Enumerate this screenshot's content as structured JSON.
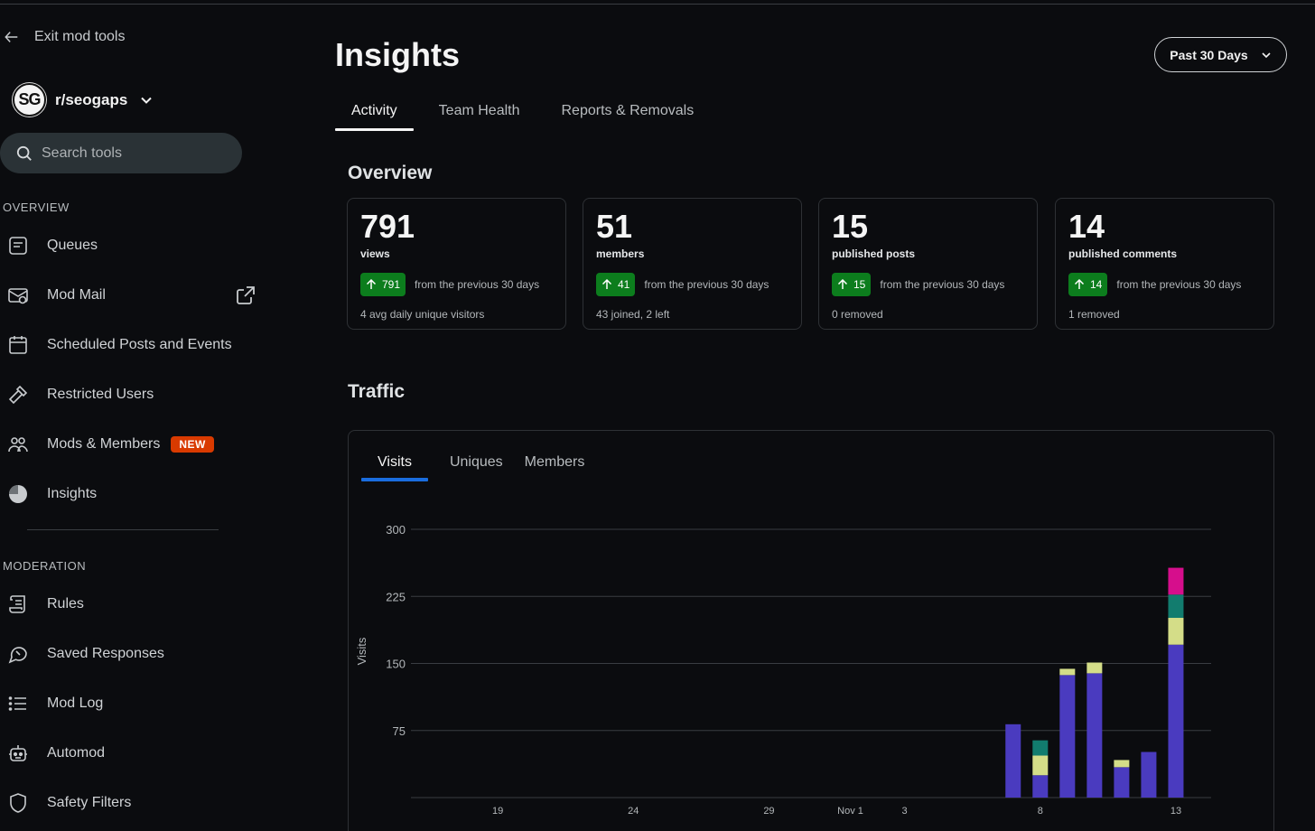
{
  "sidebar": {
    "exit_label": "Exit mod tools",
    "community_initials": "SG",
    "community_name": "r/seogaps",
    "search_placeholder": "Search tools",
    "overview_label": "OVERVIEW",
    "moderation_label": "MODERATION",
    "overview_items": [
      {
        "label": "Queues",
        "icon": "queue-icon"
      },
      {
        "label": "Mod Mail",
        "icon": "mail-icon"
      },
      {
        "label": "Scheduled Posts and Events",
        "icon": "calendar-icon"
      },
      {
        "label": "Restricted Users",
        "icon": "hammer-icon"
      },
      {
        "label": "Mods & Members",
        "icon": "people-icon"
      },
      {
        "label": "Insights",
        "icon": "pie-icon"
      }
    ],
    "new_badge": "NEW",
    "moderation_items": [
      {
        "label": "Rules",
        "icon": "scroll-icon"
      },
      {
        "label": "Saved Responses",
        "icon": "chat-icon"
      },
      {
        "label": "Mod Log",
        "icon": "list-icon"
      },
      {
        "label": "Automod",
        "icon": "robot-icon"
      },
      {
        "label": "Safety Filters",
        "icon": "shield-icon"
      }
    ]
  },
  "header": {
    "title": "Insights",
    "range": "Past 30 Days",
    "tabs": [
      "Activity",
      "Team Health",
      "Reports & Removals"
    ]
  },
  "overview": {
    "title": "Overview",
    "cards": [
      {
        "value": "791",
        "label": "views",
        "delta": "791",
        "from": "from the previous 30 days",
        "foot": "4 avg daily unique visitors"
      },
      {
        "value": "51",
        "label": "members",
        "delta": "41",
        "from": "from the previous 30 days",
        "foot": "43 joined, 2 left"
      },
      {
        "value": "15",
        "label": "published posts",
        "delta": "15",
        "from": "from the previous 30 days",
        "foot": "0 removed"
      },
      {
        "value": "14",
        "label": "published comments",
        "delta": "14",
        "from": "from the previous 30 days",
        "foot": "1 removed"
      }
    ]
  },
  "traffic": {
    "title": "Traffic",
    "tabs": [
      "Visits",
      "Uniques",
      "Members"
    ]
  },
  "colors": {
    "series_main": "#4a3bbf",
    "series_yellow": "#d4dd88",
    "series_teal": "#127c6e",
    "series_pink": "#d60e8c",
    "up_green": "#0c7d1d",
    "tab_blue": "#1a6dde"
  },
  "chart_data": {
    "type": "bar",
    "stacked": true,
    "ylabel": "Visits",
    "ylim": [
      0,
      300
    ],
    "yticks": [
      75,
      150,
      225,
      300
    ],
    "x_tick_labels": [
      {
        "day": 19,
        "label": "19"
      },
      {
        "day": 24,
        "label": "24"
      },
      {
        "day": 29,
        "label": "29"
      },
      {
        "day": 32,
        "label": "Nov 1"
      },
      {
        "day": 34,
        "label": "3"
      },
      {
        "day": 39,
        "label": "8"
      },
      {
        "day": 44,
        "label": "13"
      }
    ],
    "x_range": [
      15.8,
      45.3
    ],
    "categories": [
      38,
      39,
      40,
      41,
      42,
      43,
      44
    ],
    "series": [
      {
        "name": "main",
        "color": "#4a3bbf",
        "values": [
          82,
          25,
          137,
          139,
          34,
          51,
          171
        ]
      },
      {
        "name": "yellow",
        "color": "#d4dd88",
        "values": [
          0,
          22,
          7,
          12,
          8,
          0,
          30
        ]
      },
      {
        "name": "teal",
        "color": "#127c6e",
        "values": [
          0,
          17,
          0,
          0,
          0,
          0,
          26
        ]
      },
      {
        "name": "pink",
        "color": "#d60e8c",
        "values": [
          0,
          0,
          0,
          0,
          0,
          0,
          30
        ]
      }
    ]
  }
}
